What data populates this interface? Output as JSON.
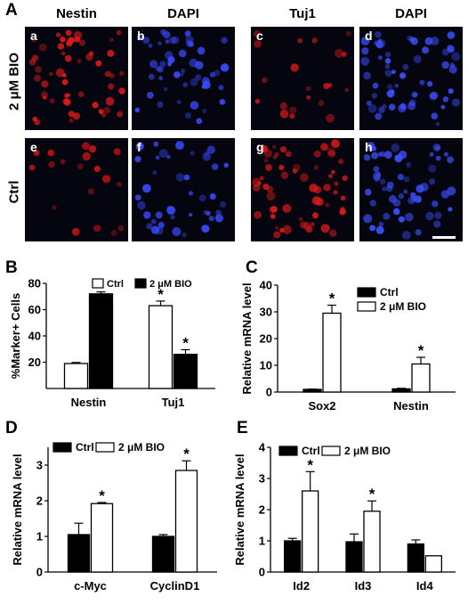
{
  "figure_label": "A",
  "columns": [
    "Nestin",
    "DAPI",
    "Tuj1",
    "DAPI"
  ],
  "rows": [
    "2 μM BIO",
    "Ctrl"
  ],
  "micrographs": [
    {
      "sub": "a",
      "stain": "Nestin",
      "color": "#e21a1a",
      "level": 0.85
    },
    {
      "sub": "b",
      "stain": "DAPI",
      "color": "#3a4bff",
      "level": 0.8
    },
    {
      "sub": "c",
      "stain": "Tuj1",
      "color": "#d81818",
      "level": 0.15
    },
    {
      "sub": "d",
      "stain": "DAPI",
      "color": "#3c50ff",
      "level": 1.0
    },
    {
      "sub": "e",
      "stain": "Nestin",
      "color": "#c81414",
      "level": 0.1
    },
    {
      "sub": "f",
      "stain": "DAPI",
      "color": "#3a4bff",
      "level": 0.6
    },
    {
      "sub": "g",
      "stain": "Tuj1",
      "color": "#e21a1a",
      "level": 1.0
    },
    {
      "sub": "h",
      "stain": "DAPI",
      "color": "#3c50ff",
      "level": 1.0
    }
  ],
  "colors": {
    "ctrl": "#ffffff",
    "bio": "#000000",
    "axis": "#000000"
  },
  "chart_data": [
    {
      "panel": "B",
      "type": "bar",
      "ylabel": "%Marker+ Cells",
      "ylim": [
        0,
        80
      ],
      "yticks": [
        20,
        40,
        60,
        80
      ],
      "categories": [
        "Nestin",
        "Tuj1"
      ],
      "legend": "top-center",
      "series": [
        {
          "name": "Ctrl",
          "fill": "ctrl",
          "values": [
            19,
            63
          ],
          "errors": [
            0.8,
            3.5
          ]
        },
        {
          "name": "2 μM BIO",
          "fill": "bio",
          "values": [
            72,
            26
          ],
          "errors": [
            1.5,
            3.5
          ]
        }
      ],
      "significance": [
        [
          false,
          true
        ],
        [
          false,
          true
        ]
      ],
      "star": "*"
    },
    {
      "panel": "C",
      "type": "bar",
      "ylabel": "Relative mRNA level",
      "ylim": [
        0,
        40
      ],
      "yticks": [
        0,
        10,
        20,
        30,
        40
      ],
      "categories": [
        "Sox2",
        "Nestin"
      ],
      "legend": "top-right",
      "series": [
        {
          "name": "Ctrl",
          "fill": "bio",
          "values": [
            1,
            1.2
          ],
          "errors": [
            0.1,
            0.2
          ]
        },
        {
          "name": "2 μM BIO",
          "fill": "ctrl",
          "values": [
            29.5,
            10.5
          ],
          "errors": [
            3,
            2.5
          ]
        }
      ],
      "significance": [
        [
          false,
          false
        ],
        [
          true,
          true
        ]
      ],
      "star": "*"
    },
    {
      "panel": "D",
      "type": "bar",
      "ylabel": "Relative mRNA level",
      "ylim": [
        0,
        3.5
      ],
      "yticks": [
        0,
        1,
        2,
        3
      ],
      "categories": [
        "c-Myc",
        "CyclinD1"
      ],
      "legend": "top-left",
      "series": [
        {
          "name": "Ctrl",
          "fill": "bio",
          "values": [
            1.05,
            1.0
          ],
          "errors": [
            0.32,
            0.05
          ]
        },
        {
          "name": "2 μM BIO",
          "fill": "ctrl",
          "values": [
            1.92,
            2.85
          ],
          "errors": [
            0.03,
            0.27
          ]
        }
      ],
      "significance": [
        [
          false,
          false
        ],
        [
          true,
          true
        ]
      ],
      "star": "*"
    },
    {
      "panel": "E",
      "type": "bar",
      "ylabel": "Relative mRNA level",
      "ylim": [
        0,
        4
      ],
      "yticks": [
        0,
        1,
        2,
        3,
        4
      ],
      "categories": [
        "Id2",
        "Id3",
        "Id4"
      ],
      "legend": "top-left",
      "series": [
        {
          "name": "Ctrl",
          "fill": "bio",
          "values": [
            1.0,
            0.97,
            0.9
          ],
          "errors": [
            0.08,
            0.25,
            0.13
          ]
        },
        {
          "name": "2 μM BIO",
          "fill": "ctrl",
          "values": [
            2.6,
            1.95,
            0.52
          ],
          "errors": [
            0.62,
            0.33,
            0
          ]
        }
      ],
      "significance": [
        [
          false,
          false,
          false
        ],
        [
          true,
          true,
          false
        ]
      ],
      "star": "*"
    }
  ]
}
